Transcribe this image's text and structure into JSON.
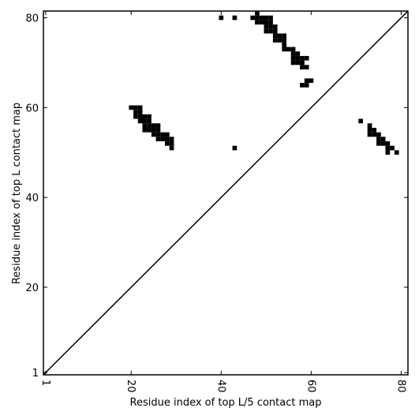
{
  "chart_data": {
    "type": "scatter",
    "xlabel": "Residue index of top L/5 contact map",
    "ylabel": "Residue index of top L contact map",
    "xlim": [
      0.5,
      81.5
    ],
    "ylim": [
      0.5,
      81.5
    ],
    "xticks": [
      1,
      20,
      40,
      60,
      80
    ],
    "yticks": [
      1,
      20,
      40,
      60,
      80
    ],
    "color": "#000000",
    "x": [
      48,
      40,
      43,
      47,
      48,
      49,
      50,
      51,
      48,
      49,
      50,
      51,
      50,
      51,
      52,
      50,
      51,
      52,
      52,
      53,
      54,
      52,
      53,
      54,
      54,
      54,
      55,
      56,
      56,
      57,
      56,
      57,
      58,
      59,
      56,
      57,
      58,
      58,
      59,
      59,
      60,
      58,
      59,
      20,
      21,
      22,
      21,
      22,
      21,
      22,
      23,
      24,
      22,
      23,
      24,
      23,
      24,
      25,
      26,
      23,
      24,
      25,
      26,
      25,
      26,
      27,
      28,
      26,
      27,
      28,
      29,
      28,
      29,
      29,
      43,
      71,
      73,
      73,
      74,
      73,
      74,
      75,
      75,
      76,
      75,
      76,
      77,
      77,
      78,
      77,
      79
    ],
    "y": [
      81,
      80,
      80,
      80,
      80,
      80,
      80,
      80,
      79,
      79,
      79,
      79,
      78,
      78,
      78,
      77,
      77,
      77,
      76,
      76,
      76,
      75,
      75,
      75,
      74,
      73,
      73,
      73,
      72,
      72,
      71,
      71,
      71,
      71,
      70,
      70,
      70,
      69,
      69,
      66,
      66,
      65,
      65,
      60,
      60,
      60,
      59,
      59,
      58,
      58,
      58,
      58,
      57,
      57,
      57,
      56,
      56,
      56,
      56,
      55,
      55,
      55,
      55,
      54,
      54,
      54,
      54,
      53,
      53,
      53,
      53,
      52,
      52,
      51,
      51,
      57,
      56,
      55,
      55,
      54,
      54,
      54,
      53,
      53,
      52,
      52,
      52,
      51,
      51,
      50,
      50
    ]
  }
}
